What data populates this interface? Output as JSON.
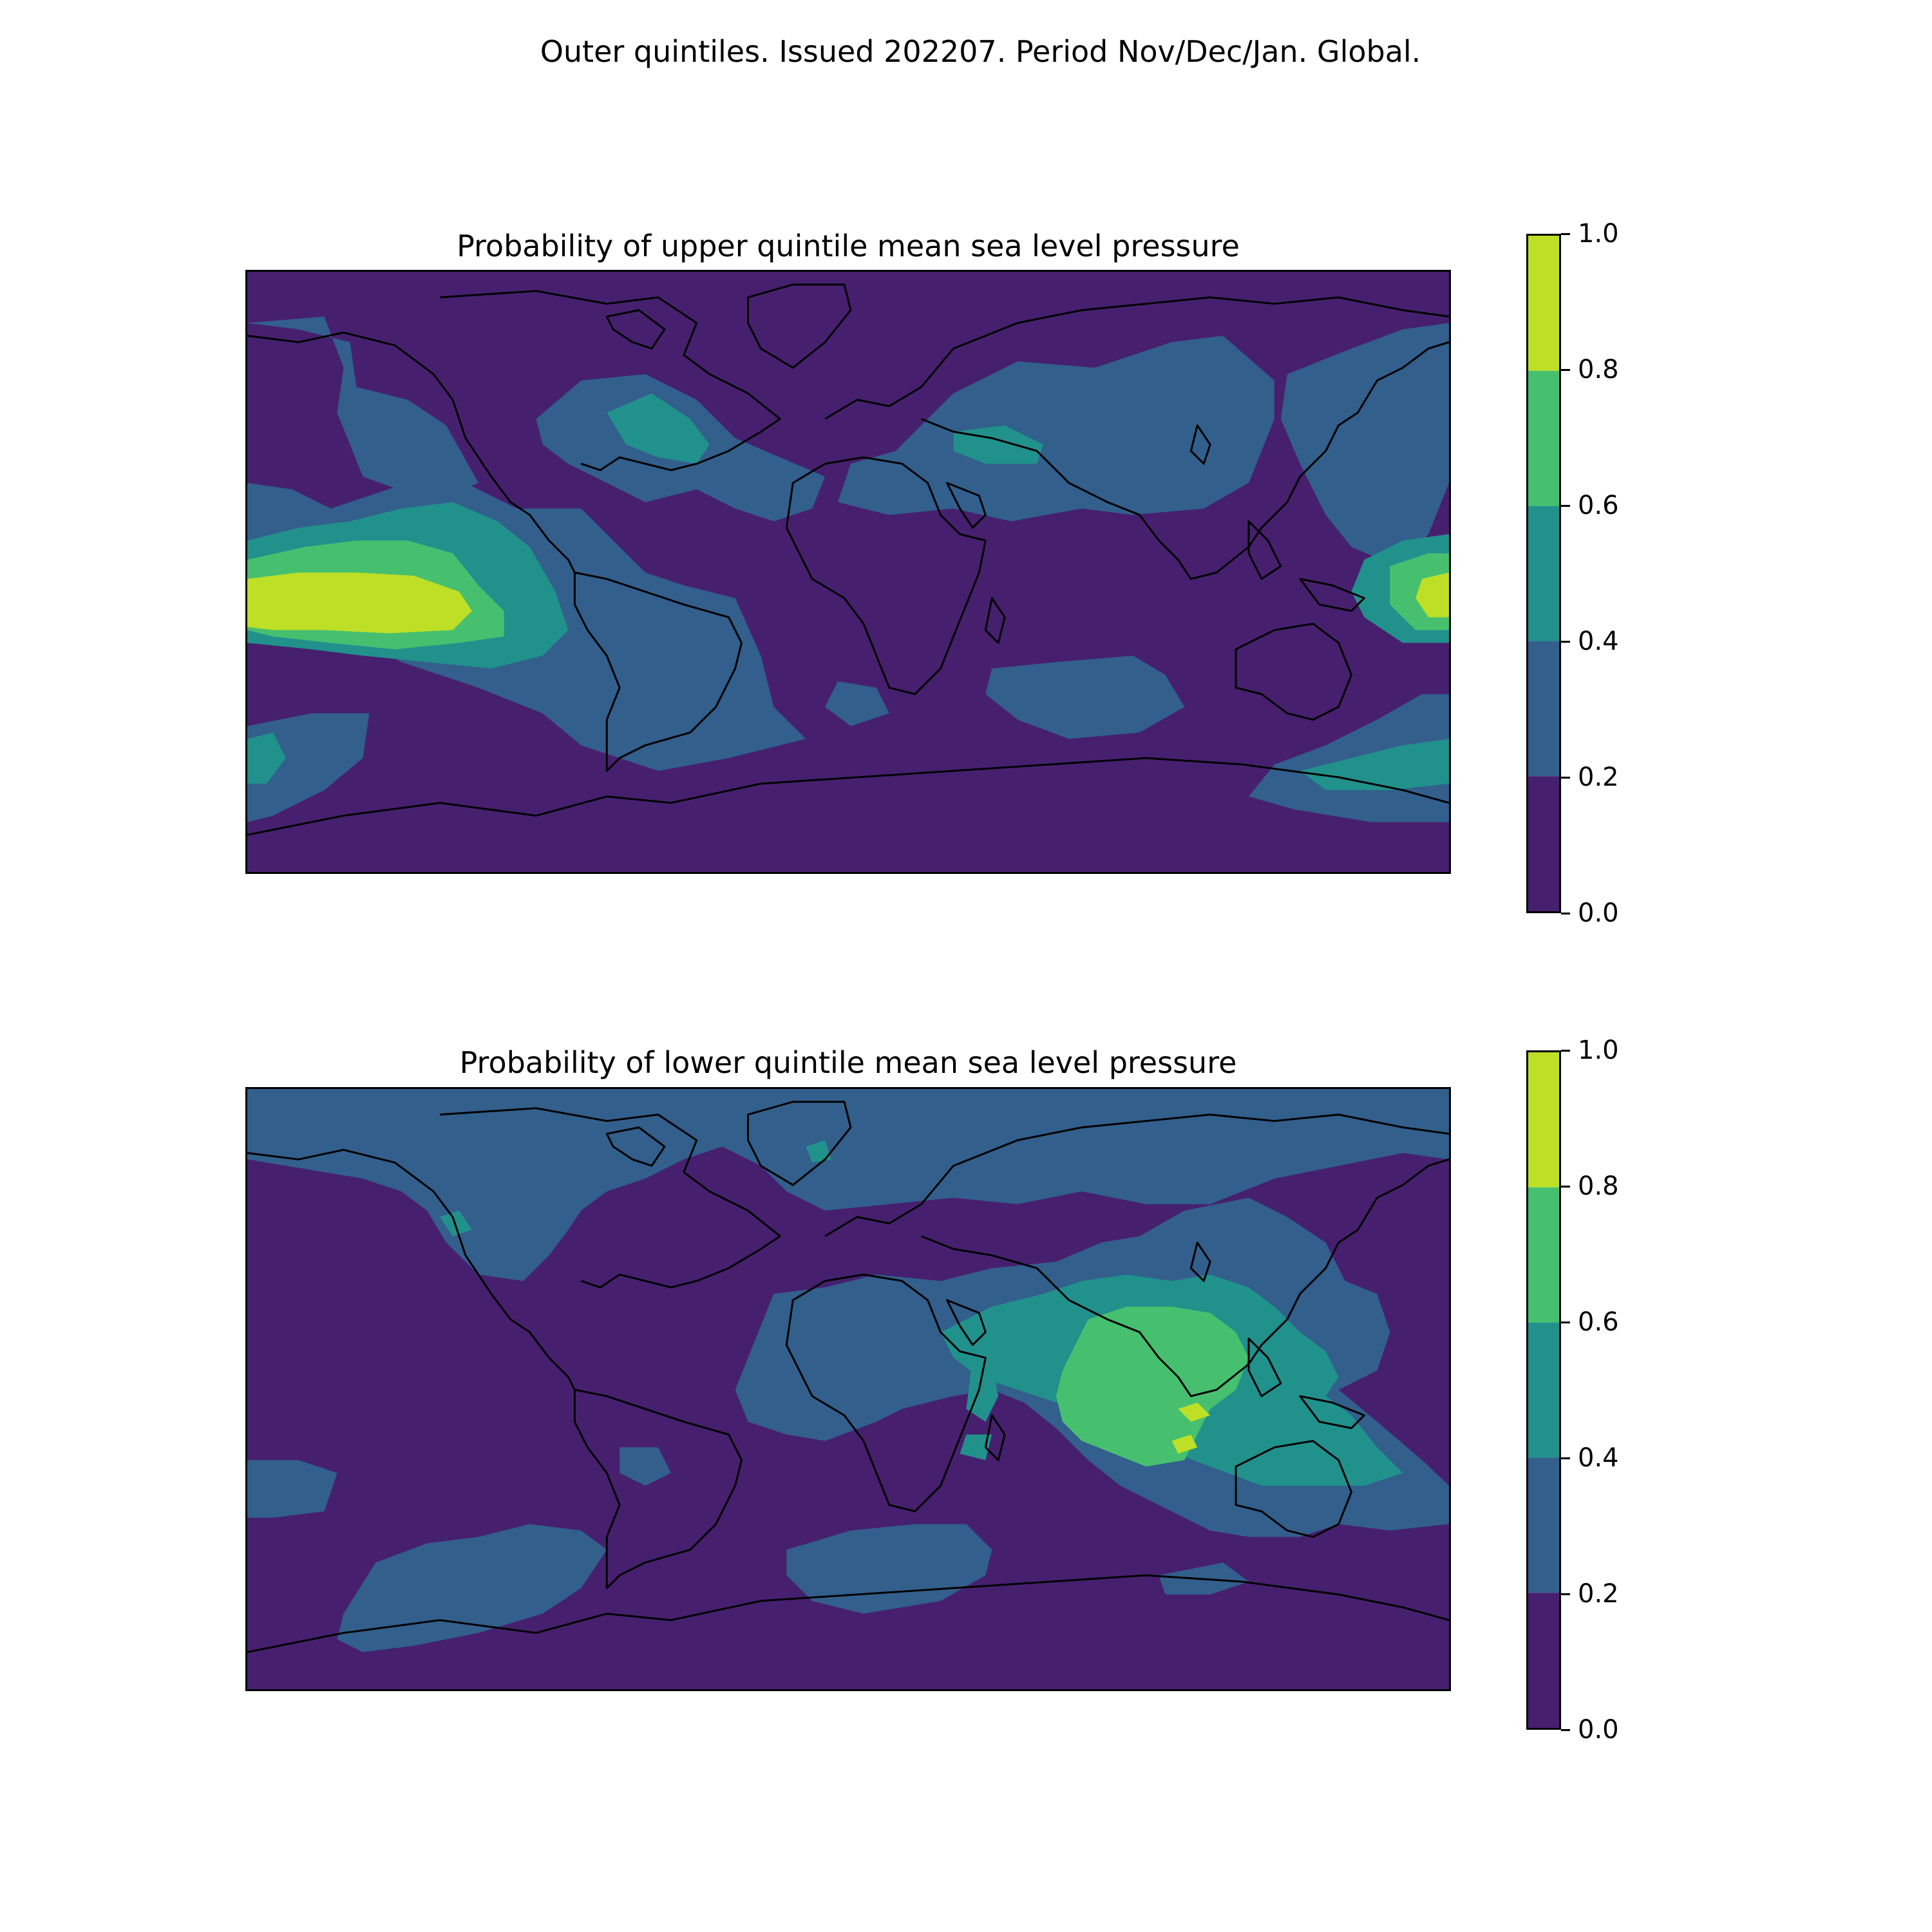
{
  "figure": {
    "suptitle": "Outer quintiles. Issued 202207. Period Nov/Dec/Jan. Global."
  },
  "colormap": {
    "levels": [
      0.0,
      0.2,
      0.4,
      0.6,
      0.8,
      1.0
    ],
    "colors": [
      "#46206f",
      "#325f8c",
      "#21918c",
      "#46c06f",
      "#bddf26"
    ]
  },
  "panels": [
    {
      "id": "upper",
      "title": "Probability of upper quintile mean sea level pressure",
      "colorbar_ticks": [
        "1.0",
        "0.8",
        "0.6",
        "0.4",
        "0.2",
        "0.0"
      ],
      "map_background_level": 0
    },
    {
      "id": "lower",
      "title": "Probability of lower quintile mean sea level pressure",
      "colorbar_ticks": [
        "1.0",
        "0.8",
        "0.6",
        "0.4",
        "0.2",
        "0.0"
      ],
      "map_background_level": 0
    }
  ]
}
